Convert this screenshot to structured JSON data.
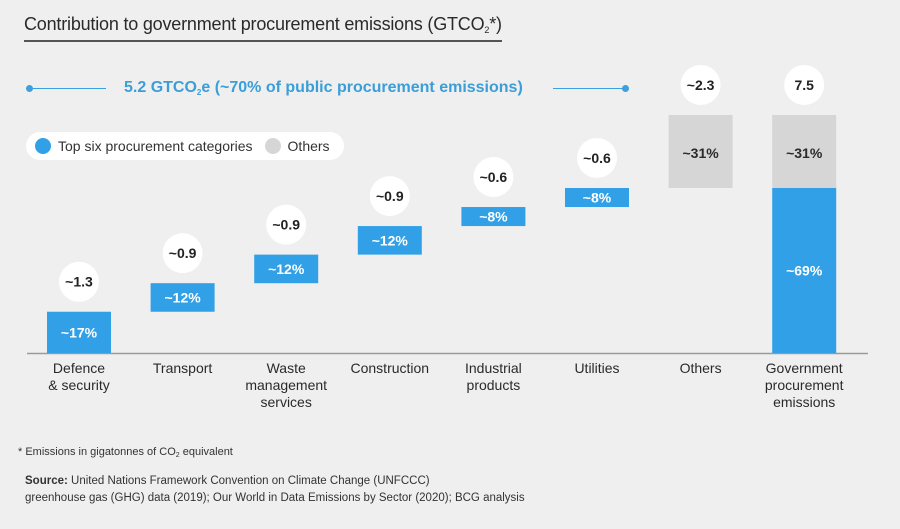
{
  "title": {
    "main": "Contribution to government procurement emissions (GTCO",
    "sub": "2",
    "end": "*)"
  },
  "bracket": {
    "label_pre": "5.2 GTCO",
    "label_sub": "2",
    "label_post": "e (~70% of public procurement emissions)"
  },
  "legend": [
    {
      "label": "Top six procurement categories",
      "color": "#32a0e6"
    },
    {
      "label": "Others",
      "color": "#d6d6d6"
    }
  ],
  "chart_data": {
    "type": "bar",
    "subtype": "waterfall",
    "title": "Contribution to government procurement emissions (GTCO2*)",
    "xlabel": "",
    "ylabel": "GTCO2",
    "ylim": [
      0,
      7.5
    ],
    "grid": false,
    "legend_position": "top-left",
    "categories": [
      [
        "Defence",
        "& security"
      ],
      [
        "Transport"
      ],
      [
        "Waste",
        "management",
        "services"
      ],
      [
        "Construction"
      ],
      [
        "Industrial",
        "products"
      ],
      [
        "Utilities"
      ],
      [
        "Others"
      ],
      [
        "Government",
        "procurement",
        "emissions"
      ]
    ],
    "values": [
      1.3,
      0.9,
      0.9,
      0.9,
      0.6,
      0.6,
      2.3,
      7.5
    ],
    "value_labels": [
      "~1.3",
      "~0.9",
      "~0.9",
      "~0.9",
      "~0.6",
      "~0.6",
      "~2.3",
      "7.5"
    ],
    "share_labels": [
      "~17%",
      "~12%",
      "~12%",
      "~12%",
      "~8%",
      "~8%",
      "~31%",
      null
    ],
    "series_kind": [
      "top6",
      "top6",
      "top6",
      "top6",
      "top6",
      "top6",
      "others",
      "total"
    ],
    "total_breakdown": [
      {
        "name": "Top six procurement categories",
        "value": 5.2,
        "label": "~69%"
      },
      {
        "name": "Others",
        "value": 2.3,
        "label": "~31%"
      }
    ],
    "annotations": [
      "5.2 GTCO2e (~70% of public procurement emissions)"
    ],
    "colors": {
      "top6": "#32a0e6",
      "others": "#d6d6d6"
    }
  },
  "footnote": {
    "pre": "* Emissions in gigatonnes of CO",
    "sub": "2",
    "post": " equivalent"
  },
  "source": {
    "label": "Source:",
    "line1": " United Nations Framework Convention on Climate Change (UNFCCC)",
    "line2": "greenhouse gas (GHG) data (2019); Our World in Data Emissions by Sector (2020); BCG analysis"
  }
}
